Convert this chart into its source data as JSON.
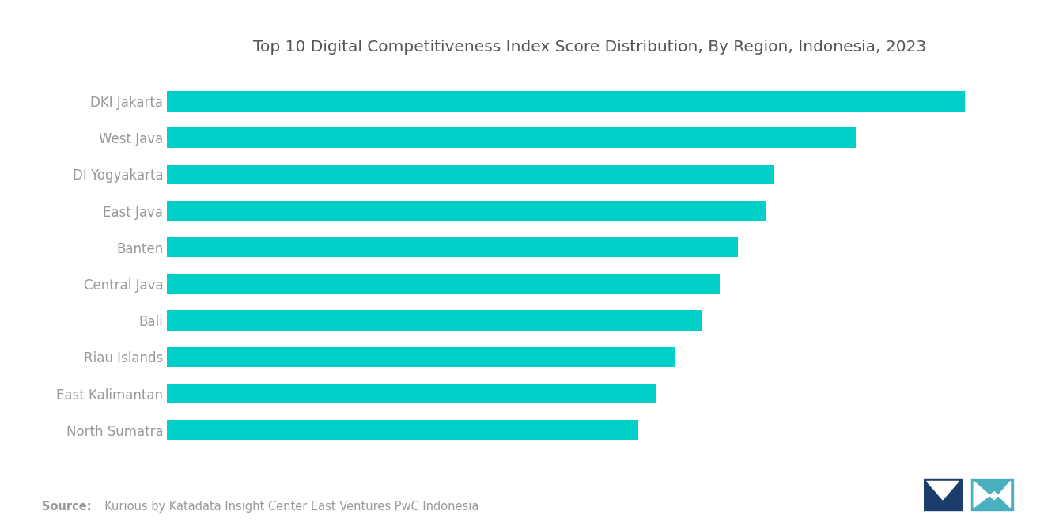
{
  "title": "Top 10 Digital Competitiveness Index Score Distribution, By Region, Indonesia, 2023",
  "categories": [
    "North Sumatra",
    "East Kalimantan",
    "Riau Islands",
    "Bali",
    "Central Java",
    "Banten",
    "East Java",
    "DI Yogyakarta",
    "West Java",
    "DKI Jakarta"
  ],
  "values": [
    52,
    54,
    56,
    59,
    61,
    63,
    66,
    67,
    76,
    88
  ],
  "bar_color": "#00D0C8",
  "background_color": "#ffffff",
  "title_color": "#555555",
  "label_color": "#999999",
  "source_bold": "Source:",
  "source_rest": "  Kurious by Katadata Insight Center East Ventures PwC Indonesia",
  "title_fontsize": 14.5,
  "label_fontsize": 12,
  "source_fontsize": 10.5
}
